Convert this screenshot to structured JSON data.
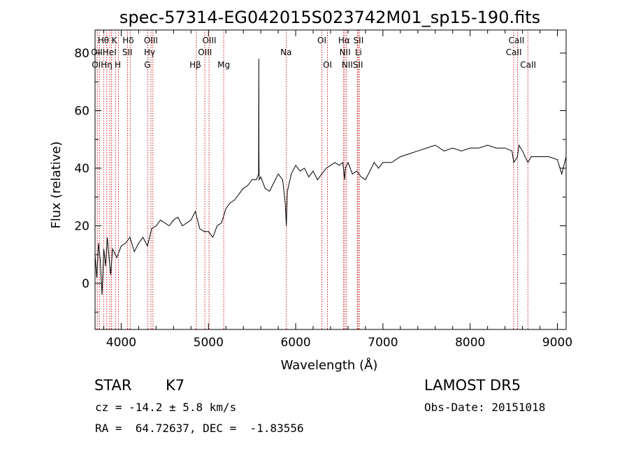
{
  "chart_data": {
    "type": "line",
    "title": "spec-57314-EG042015S023742M01_sp15-190.fits",
    "xlabel": "Wavelength (Å)",
    "ylabel": "Flux (relative)",
    "xlim": [
      3700,
      9100
    ],
    "ylim": [
      -16,
      88
    ],
    "x_ticks": [
      4000,
      5000,
      6000,
      7000,
      8000,
      9000
    ],
    "y_ticks": [
      0,
      20,
      40,
      60,
      80
    ],
    "grid": false,
    "series": [
      {
        "x": [
          3700,
          3720,
          3740,
          3760,
          3780,
          3800,
          3820,
          3840,
          3860,
          3880,
          3900,
          3950,
          4000,
          4050,
          4100,
          4150,
          4200,
          4250,
          4300,
          4350,
          4400,
          4450,
          4500,
          4550,
          4600,
          4650,
          4700,
          4750,
          4800,
          4850,
          4900,
          4950,
          5000,
          5050,
          5100,
          5150,
          5200,
          5250,
          5300,
          5350,
          5400,
          5450,
          5500,
          5550,
          5575,
          5577,
          5579,
          5581,
          5600,
          5650,
          5700,
          5750,
          5800,
          5850,
          5880,
          5893,
          5905,
          5950,
          6000,
          6050,
          6100,
          6150,
          6200,
          6250,
          6300,
          6350,
          6400,
          6450,
          6500,
          6540,
          6555,
          6563,
          6570,
          6600,
          6650,
          6700,
          6750,
          6800,
          6850,
          6900,
          6950,
          7000,
          7100,
          7200,
          7300,
          7400,
          7500,
          7600,
          7700,
          7800,
          7900,
          8000,
          8100,
          8200,
          8300,
          8400,
          8480,
          8500,
          8542,
          8560,
          8600,
          8662,
          8700,
          8800,
          8900,
          9000,
          9050,
          9100
        ],
        "y": [
          10,
          2,
          14,
          8,
          -4,
          12,
          6,
          16,
          9,
          3,
          12,
          9,
          13,
          14,
          16,
          11,
          14,
          16,
          13,
          19,
          20,
          22,
          21,
          20,
          22,
          23,
          20,
          21,
          22,
          25,
          19,
          18,
          18,
          16,
          20,
          21,
          26,
          28,
          29,
          31,
          33,
          34,
          36,
          36,
          38,
          78,
          45,
          36,
          37,
          33,
          32,
          35,
          38,
          36,
          28,
          20,
          32,
          38,
          41,
          39,
          40,
          37,
          39,
          36,
          38,
          40,
          41,
          42,
          41,
          42,
          38,
          36,
          40,
          42,
          38,
          39,
          37,
          36,
          39,
          42,
          40,
          42,
          42,
          44,
          45,
          46,
          47,
          48,
          46,
          47,
          46,
          47,
          47,
          48,
          47,
          47,
          46,
          42,
          44,
          48,
          46,
          42,
          44,
          44,
          44,
          43,
          38,
          44
        ]
      }
    ],
    "lines": [
      {
        "wl": 3726,
        "labels": [
          "OII"
        ]
      },
      {
        "wl": 3750,
        "labels": [
          "Hη"
        ]
      },
      {
        "wl": 3798,
        "labels": [
          "Hη"
        ]
      },
      {
        "wl": 3835,
        "labels": [
          "Hη"
        ]
      },
      {
        "wl": 3869,
        "labels": [
          "HeI"
        ]
      },
      {
        "wl": 3889,
        "labels": [
          "Hθ"
        ]
      },
      {
        "wl": 3934,
        "labels": [
          "K"
        ]
      },
      {
        "wl": 3969,
        "labels": [
          "H"
        ]
      },
      {
        "wl": 4072,
        "labels": [
          "SII"
        ]
      },
      {
        "wl": 4102,
        "labels": [
          "Hδ"
        ]
      },
      {
        "wl": 4304,
        "labels": [
          "G"
        ]
      },
      {
        "wl": 4341,
        "labels": [
          "Hγ"
        ]
      },
      {
        "wl": 4363,
        "labels": [
          "OIII"
        ]
      },
      {
        "wl": 4861,
        "labels": [
          "Hβ"
        ]
      },
      {
        "wl": 4959,
        "labels": [
          "OIII"
        ]
      },
      {
        "wl": 5007,
        "labels": [
          "OIII"
        ]
      },
      {
        "wl": 5175,
        "labels": [
          "Mg"
        ]
      },
      {
        "wl": 5893,
        "labels": [
          "Na"
        ]
      },
      {
        "wl": 6300,
        "labels": [
          "OI"
        ]
      },
      {
        "wl": 6364,
        "labels": [
          "OI"
        ]
      },
      {
        "wl": 6548,
        "labels": [
          "NII"
        ]
      },
      {
        "wl": 6563,
        "labels": [
          "Hα"
        ]
      },
      {
        "wl": 6583,
        "labels": [
          "NII"
        ]
      },
      {
        "wl": 6707,
        "labels": [
          "Li"
        ]
      },
      {
        "wl": 6716,
        "labels": [
          "SII"
        ]
      },
      {
        "wl": 6731,
        "labels": [
          "SII"
        ]
      },
      {
        "wl": 8498,
        "labels": [
          "CaII"
        ]
      },
      {
        "wl": 8542,
        "labels": [
          "CaII"
        ]
      },
      {
        "wl": 8662,
        "labels": [
          "CaII"
        ]
      }
    ],
    "annotations": [
      {
        "text": "Hθ",
        "wl": 3795,
        "row": 0
      },
      {
        "text": "K",
        "wl": 3920,
        "row": 0
      },
      {
        "text": "Hδ",
        "wl": 4080,
        "row": 0
      },
      {
        "text": "OIII",
        "wl": 4340,
        "row": 0
      },
      {
        "text": "OIII",
        "wl": 5010,
        "row": 0
      },
      {
        "text": "OI",
        "wl": 6300,
        "row": 0
      },
      {
        "text": "Hα",
        "wl": 6555,
        "row": 0
      },
      {
        "text": "SII",
        "wl": 6720,
        "row": 0
      },
      {
        "text": "CaII",
        "wl": 8530,
        "row": 0
      },
      {
        "text": "OIIHeI",
        "wl": 3800,
        "row": 1
      },
      {
        "text": "SII",
        "wl": 4070,
        "row": 1
      },
      {
        "text": "Hγ",
        "wl": 4325,
        "row": 1
      },
      {
        "text": "OIII",
        "wl": 4960,
        "row": 1
      },
      {
        "text": "Na",
        "wl": 5890,
        "row": 1
      },
      {
        "text": "NII",
        "wl": 6565,
        "row": 1
      },
      {
        "text": "Li",
        "wl": 6720,
        "row": 1
      },
      {
        "text": "CaII",
        "wl": 8500,
        "row": 1
      },
      {
        "text": "OIHη",
        "wl": 3780,
        "row": 2
      },
      {
        "text": "H",
        "wl": 3960,
        "row": 2
      },
      {
        "text": "G",
        "wl": 4300,
        "row": 2
      },
      {
        "text": "Hβ",
        "wl": 4850,
        "row": 2
      },
      {
        "text": "Mg",
        "wl": 5175,
        "row": 2
      },
      {
        "text": "OI",
        "wl": 6365,
        "row": 2
      },
      {
        "text": "NIISII",
        "wl": 6650,
        "row": 2
      },
      {
        "text": "CaII",
        "wl": 8665,
        "row": 2
      }
    ]
  },
  "info": {
    "object_class": "STAR",
    "subclass": "K7",
    "survey": "LAMOST DR5",
    "cz": "cz = -14.2 ± 5.8 km/s",
    "obs_date": "Obs-Date: 20151018",
    "coords": "RA =  64.72637, DEC =  -1.83556"
  }
}
